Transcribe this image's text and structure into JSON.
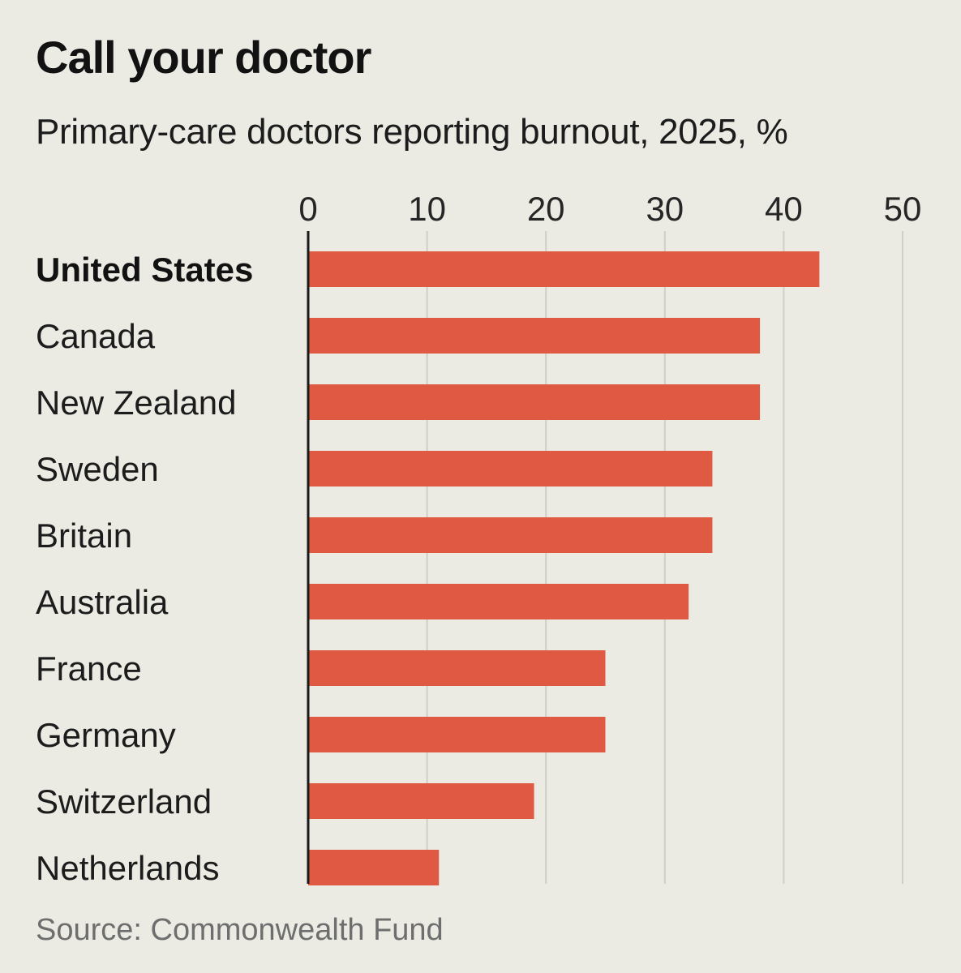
{
  "title": "Call your doctor",
  "subtitle": "Primary-care doctors reporting burnout, 2025, %",
  "source": "Source: Commonwealth Fund",
  "colors": {
    "bar": "#e05a43",
    "grid": "#cfcfc8",
    "axis": "#1a1a1a",
    "background": "#ebebe4"
  },
  "chart_data": {
    "type": "bar",
    "orientation": "horizontal",
    "categories": [
      "United States",
      "Canada",
      "New Zealand",
      "Sweden",
      "Britain",
      "Australia",
      "France",
      "Germany",
      "Switzerland",
      "Netherlands"
    ],
    "values": [
      43,
      38,
      38,
      34,
      34,
      32,
      25,
      25,
      19,
      11
    ],
    "highlighted": "United States",
    "xlim": [
      0,
      50
    ],
    "xticks": [
      "0",
      "10",
      "20",
      "30",
      "40",
      "50"
    ],
    "grid": true,
    "legend": "none"
  }
}
